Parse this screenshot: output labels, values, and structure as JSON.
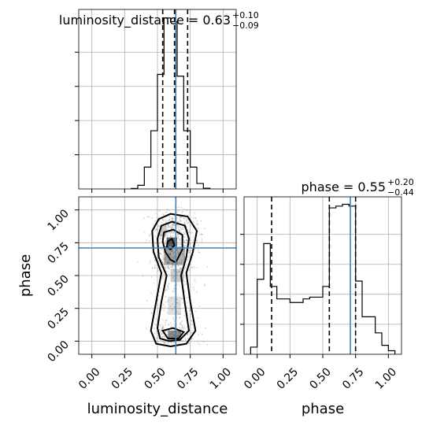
{
  "chart_data": {
    "type": "corner",
    "parameters": [
      "luminosity_distance",
      "phase"
    ],
    "truths": {
      "luminosity_distance": 0.64,
      "phase": 0.71
    },
    "titles": [
      {
        "param": "luminosity_distance",
        "text": "luminosity_distance = 0.63",
        "plus": "+0.10",
        "minus": "−0.09"
      },
      {
        "param": "phase",
        "text": "phase = 0.55",
        "plus": "+0.20",
        "minus": "−0.44"
      }
    ],
    "quantiles": {
      "luminosity_distance": [
        0.54,
        0.63,
        0.73
      ],
      "phase": [
        0.11,
        0.55,
        0.75
      ]
    },
    "xlim": [
      -0.1,
      1.1
    ],
    "ylim_phase": [
      -0.1,
      1.1
    ],
    "ticks": [
      0.0,
      0.25,
      0.5,
      0.75,
      1.0
    ],
    "tick_labels": [
      "0.00",
      "0.25",
      "0.50",
      "0.75",
      "1.00"
    ],
    "xlabels": [
      "luminosity_distance",
      "phase"
    ],
    "ylabel": "phase",
    "hist_luminosity_distance": {
      "edges": [
        0.3,
        0.35,
        0.4,
        0.45,
        0.5,
        0.55,
        0.6,
        0.65,
        0.7,
        0.75,
        0.8,
        0.85,
        0.9
      ],
      "values": [
        0.3,
        2,
        12,
        32,
        63,
        94,
        92,
        62,
        32,
        12,
        3,
        0.4
      ]
    },
    "hist_phase": {
      "edges": [
        -0.05,
        0.0,
        0.05,
        0.1,
        0.15,
        0.2,
        0.25,
        0.3,
        0.35,
        0.4,
        0.45,
        0.5,
        0.55,
        0.6,
        0.65,
        0.7,
        0.75,
        0.8,
        0.85,
        0.9,
        0.95,
        1.0,
        1.05
      ],
      "values": [
        4,
        42,
        62,
        38,
        31,
        31,
        29,
        29,
        31,
        32,
        32,
        38,
        82,
        83,
        84,
        83,
        41,
        21,
        21,
        12,
        5,
        2
      ]
    },
    "density_levels": [
      "0.5",
      "1.0",
      "1.5",
      "2.0"
    ],
    "grid": true,
    "truth_color": "#4682b4",
    "hist_color": "#000000",
    "scatter_color": "#888888"
  }
}
